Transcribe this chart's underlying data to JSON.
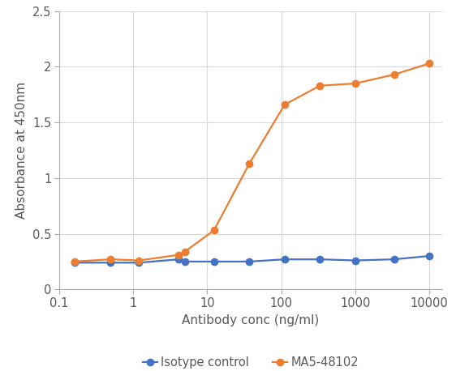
{
  "x_values": [
    0.16,
    0.49,
    1.2,
    4.1,
    5.0,
    12.3,
    37.0,
    111.0,
    333.0,
    1000.0,
    3333.0,
    10000.0
  ],
  "isotype_y": [
    0.24,
    0.24,
    0.24,
    0.27,
    0.25,
    0.25,
    0.25,
    0.27,
    0.27,
    0.26,
    0.27,
    0.3
  ],
  "ma5_y": [
    0.25,
    0.27,
    0.26,
    0.31,
    0.34,
    0.53,
    1.13,
    1.66,
    1.83,
    1.85,
    1.93,
    2.03
  ],
  "isotype_color": "#4472C4",
  "ma5_color": "#ED7D31",
  "isotype_label": "Isotype control",
  "ma5_label": "MA5-48102",
  "xlabel": "Antibody conc (ng/ml)",
  "ylabel": "Absorbance at 450nm",
  "ylim": [
    0,
    2.5
  ],
  "ytick_vals": [
    0,
    0.5,
    1,
    1.5,
    2,
    2.5
  ],
  "ytick_labels": [
    "0",
    "0.5",
    "1",
    "1.5",
    "2",
    "2.5"
  ],
  "xtick_vals": [
    0.1,
    1,
    10,
    100,
    1000,
    10000
  ],
  "xtick_labels": [
    "0.1",
    "1",
    "10",
    "100",
    "1000",
    "10000"
  ],
  "xlim": [
    0.1,
    15000
  ],
  "background_color": "#ffffff",
  "grid_color": "#d9d9d9",
  "marker": "o",
  "markersize": 6,
  "linewidth": 1.6,
  "legend_fontsize": 10.5,
  "axis_label_fontsize": 11,
  "tick_fontsize": 10.5,
  "tick_color": "#595959",
  "axis_label_color": "#595959"
}
